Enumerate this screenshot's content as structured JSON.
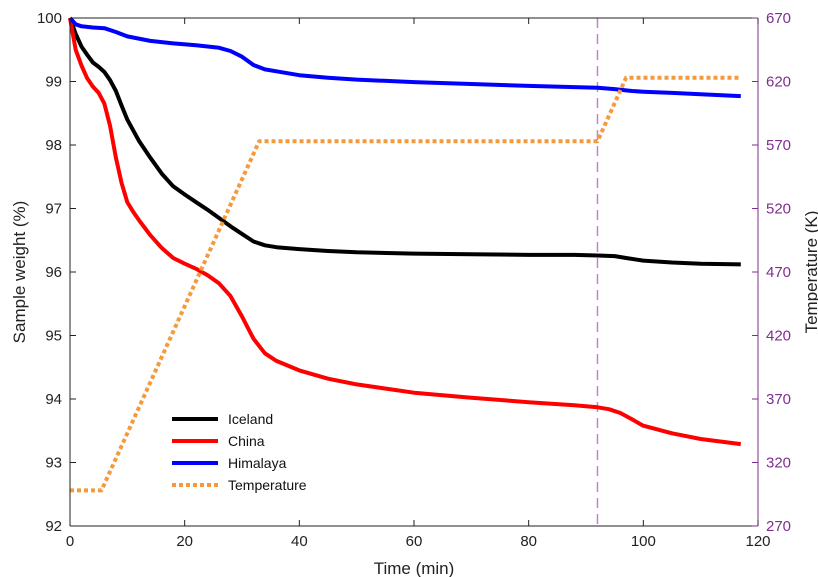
{
  "colors": {
    "iceland": "#000000",
    "china": "#ff0000",
    "himalaya": "#0000ff",
    "temperature": "#f59a3c",
    "right_axis": "#7e2f8e",
    "marker_line": "#c283c9"
  },
  "chart_data": {
    "type": "line",
    "title": "",
    "xlabel": "Time (min)",
    "ylabel": "Sample weight (%)",
    "y2label": "Temperature (K)",
    "xlim": [
      0,
      120
    ],
    "ylim": [
      92,
      100
    ],
    "y2lim": [
      270,
      670
    ],
    "xticks": [
      0,
      20,
      40,
      60,
      80,
      100,
      120
    ],
    "yticks": [
      92,
      93,
      94,
      95,
      96,
      97,
      98,
      99,
      100
    ],
    "y2ticks": [
      270,
      320,
      370,
      420,
      470,
      520,
      570,
      620,
      670
    ],
    "grid": false,
    "legend_position": "lower-left",
    "vertical_marker_x": 92,
    "series": [
      {
        "name": "Iceland",
        "axis": "left",
        "style": "solid",
        "x": [
          0,
          1,
          2,
          3,
          4,
          5,
          6,
          7,
          8,
          9,
          10,
          12,
          14,
          16,
          18,
          20,
          22,
          24,
          26,
          28,
          30,
          32,
          34,
          36,
          40,
          45,
          50,
          60,
          70,
          80,
          88,
          92,
          95,
          97,
          100,
          105,
          110,
          117
        ],
        "values": [
          100,
          99.75,
          99.55,
          99.42,
          99.3,
          99.23,
          99.15,
          99.02,
          98.85,
          98.62,
          98.4,
          98.07,
          97.8,
          97.55,
          97.35,
          97.22,
          97.1,
          96.98,
          96.85,
          96.72,
          96.6,
          96.48,
          96.42,
          96.39,
          96.36,
          96.33,
          96.31,
          96.29,
          96.28,
          96.27,
          96.27,
          96.26,
          96.25,
          96.22,
          96.18,
          96.15,
          96.13,
          96.12
        ]
      },
      {
        "name": "China",
        "axis": "left",
        "style": "solid",
        "x": [
          0,
          1,
          2,
          3,
          4,
          5,
          6,
          7,
          8,
          9,
          10,
          11,
          12,
          13,
          14,
          16,
          18,
          20,
          22,
          24,
          26,
          28,
          30,
          32,
          34,
          36,
          40,
          45,
          50,
          60,
          70,
          80,
          88,
          92,
          94,
          96,
          98,
          100,
          105,
          110,
          117
        ],
        "values": [
          100,
          99.5,
          99.25,
          99.05,
          98.92,
          98.82,
          98.65,
          98.3,
          97.8,
          97.4,
          97.1,
          96.95,
          96.82,
          96.7,
          96.58,
          96.38,
          96.22,
          96.13,
          96.05,
          95.95,
          95.82,
          95.62,
          95.3,
          94.95,
          94.72,
          94.6,
          94.45,
          94.32,
          94.23,
          94.1,
          94.02,
          93.95,
          93.9,
          93.87,
          93.84,
          93.78,
          93.68,
          93.58,
          93.46,
          93.37,
          93.29
        ]
      },
      {
        "name": "Himalaya",
        "axis": "left",
        "style": "solid",
        "x": [
          0,
          1,
          2,
          4,
          6,
          8,
          10,
          14,
          18,
          22,
          26,
          28,
          30,
          32,
          34,
          36,
          40,
          45,
          50,
          60,
          70,
          80,
          92,
          95,
          98,
          100,
          105,
          110,
          117
        ],
        "values": [
          100,
          99.9,
          99.87,
          99.85,
          99.84,
          99.78,
          99.71,
          99.64,
          99.6,
          99.57,
          99.53,
          99.48,
          99.39,
          99.26,
          99.19,
          99.16,
          99.1,
          99.06,
          99.03,
          98.99,
          98.96,
          98.93,
          98.9,
          98.88,
          98.85,
          98.84,
          98.82,
          98.8,
          98.77
        ]
      },
      {
        "name": "Temperature",
        "axis": "right",
        "style": "dotted",
        "x": [
          0,
          5.5,
          33,
          92,
          97,
          117
        ],
        "values": [
          298,
          298,
          573,
          573,
          623,
          623
        ]
      }
    ]
  }
}
